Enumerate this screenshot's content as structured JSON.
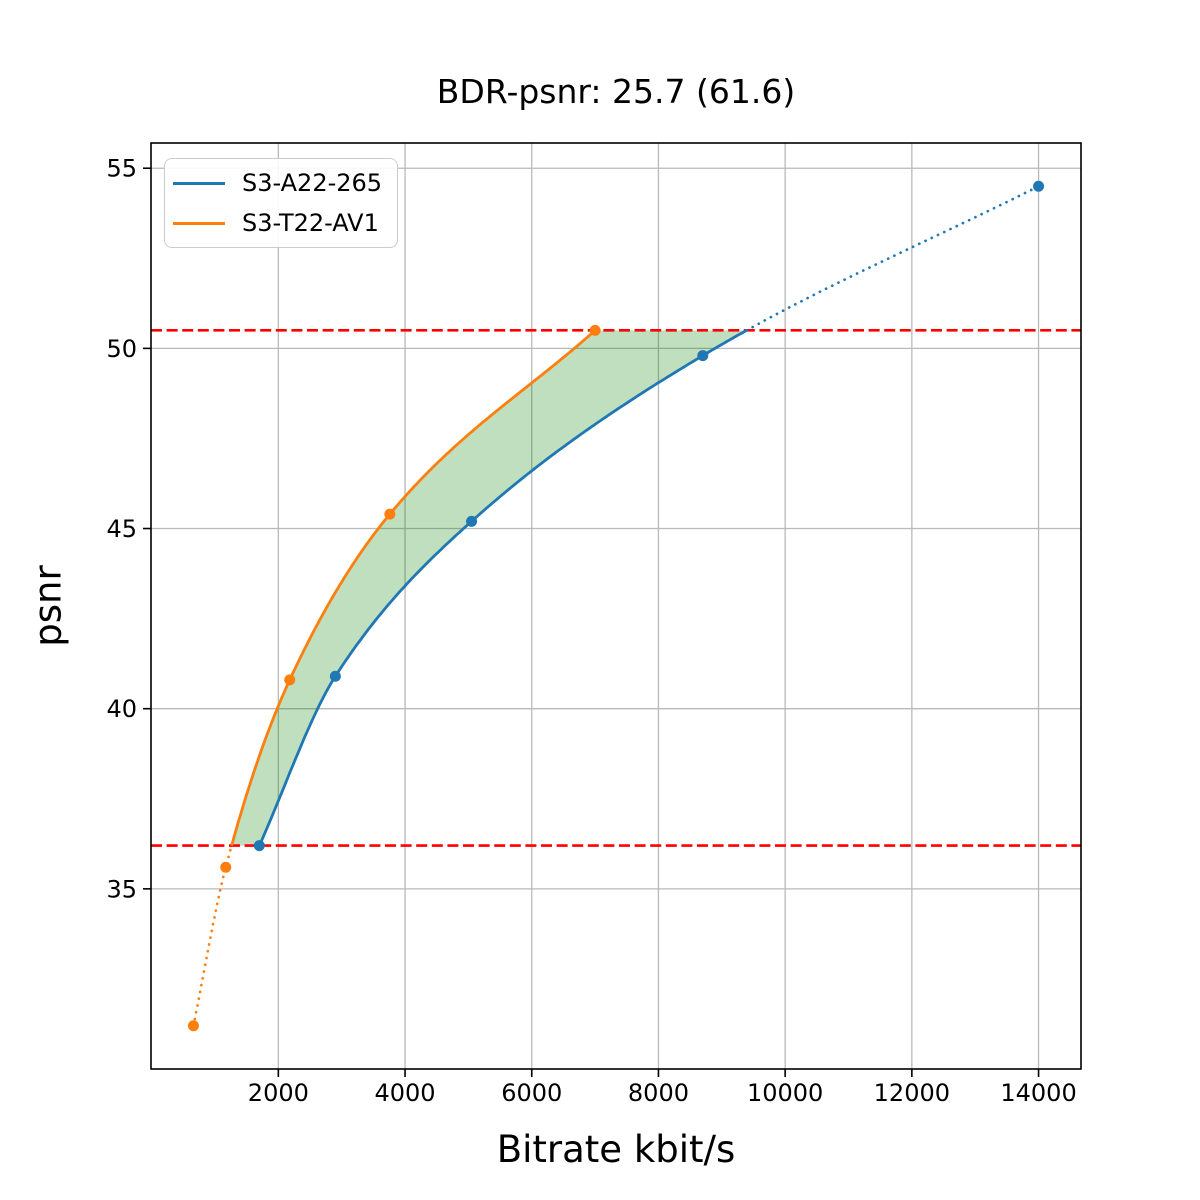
{
  "chart_data": {
    "type": "line",
    "title": "BDR-psnr: 25.7 (61.6)",
    "xlabel": "Bitrate kbit/s",
    "ylabel": "psnr",
    "xlim": [
      -10,
      14670
    ],
    "ylim": [
      30.0,
      55.7
    ],
    "x_ticks": [
      2000,
      4000,
      6000,
      8000,
      10000,
      12000,
      14000
    ],
    "y_ticks": [
      35,
      40,
      45,
      50,
      55
    ],
    "grid": true,
    "legend_position": "upper left",
    "series": [
      {
        "name": "S3-A22-265",
        "color": "#1f77b4",
        "marker": "circle",
        "points": [
          [
            1700,
            36.2
          ],
          [
            2900,
            40.9
          ],
          [
            5050,
            45.2
          ],
          [
            8700,
            49.8
          ],
          [
            14000,
            54.5
          ]
        ]
      },
      {
        "name": "S3-T22-AV1",
        "color": "#ff7f0e",
        "marker": "circle",
        "points": [
          [
            660,
            31.2
          ],
          [
            1170,
            35.6
          ],
          [
            2180,
            40.8
          ],
          [
            3760,
            45.4
          ],
          [
            7000,
            50.5
          ]
        ]
      }
    ],
    "bd_interval": {
      "lower_psnr": 36.2,
      "upper_psnr": 50.5,
      "line_color": "#ff0000",
      "line_style": "dashed",
      "note": "curves dotted outside overlap interval"
    },
    "fill_between": {
      "color": "#008000",
      "opacity": 0.25
    },
    "grid_color": "#b9b9b9",
    "spine_color": "#000000"
  }
}
